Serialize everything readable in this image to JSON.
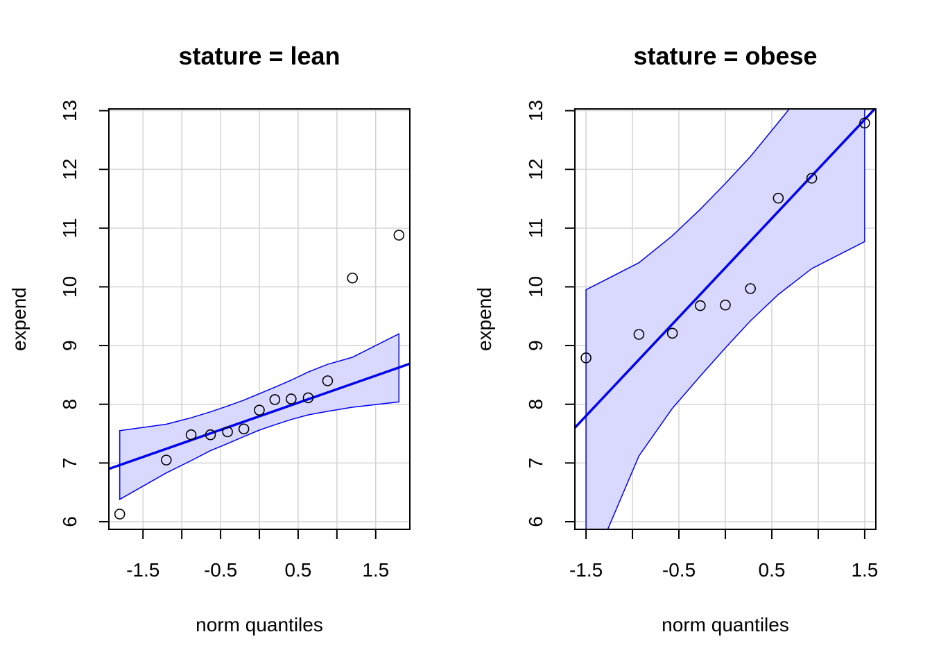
{
  "colors": {
    "line": "#0000ee",
    "band_fill": "#d9d9ff",
    "band_stroke": "#0000ee",
    "grid": "#d3d3d3",
    "points": "#000000"
  },
  "chart_data": [
    {
      "type": "scatter",
      "title": "stature = lean",
      "xlabel": "norm quantiles",
      "ylabel": "expend",
      "xlim": [
        -1.94,
        1.94
      ],
      "ylim": [
        5.87,
        13.03
      ],
      "xticks": [
        "-1.5",
        "-0.5",
        "0.5",
        "1.5"
      ],
      "yticks": [
        "6",
        "7",
        "8",
        "9",
        "10",
        "11",
        "12",
        "13"
      ],
      "grid": true,
      "points": {
        "x": [
          -1.8,
          -1.2,
          -0.88,
          -0.63,
          -0.41,
          -0.2,
          0.0,
          0.2,
          0.41,
          0.63,
          0.88,
          1.2,
          1.8
        ],
        "y": [
          6.13,
          7.05,
          7.48,
          7.48,
          7.53,
          7.58,
          7.9,
          8.08,
          8.09,
          8.11,
          8.4,
          10.15,
          10.88
        ]
      },
      "fit_line": {
        "x": [
          -1.94,
          1.94
        ],
        "y": [
          6.9,
          8.69
        ]
      },
      "band": {
        "x": [
          -1.8,
          -1.2,
          -0.88,
          -0.63,
          -0.41,
          -0.2,
          0.0,
          0.2,
          0.41,
          0.63,
          0.88,
          1.2,
          1.8
        ],
        "upper": [
          7.55,
          7.66,
          7.77,
          7.87,
          7.97,
          8.07,
          8.18,
          8.29,
          8.41,
          8.55,
          8.68,
          8.8,
          9.2
        ],
        "lower": [
          6.38,
          6.83,
          7.04,
          7.21,
          7.33,
          7.45,
          7.56,
          7.65,
          7.74,
          7.82,
          7.88,
          7.95,
          8.04
        ]
      }
    },
    {
      "type": "scatter",
      "title": "stature = obese",
      "xlabel": "norm quantiles",
      "ylabel": "expend",
      "xlim": [
        -1.62,
        1.62
      ],
      "ylim": [
        5.87,
        13.03
      ],
      "xticks": [
        "-1.5",
        "-0.5",
        "0.5",
        "1.5"
      ],
      "yticks": [
        "6",
        "7",
        "8",
        "9",
        "10",
        "11",
        "12",
        "13"
      ],
      "grid": true,
      "points": {
        "x": [
          -1.5,
          -0.93,
          -0.57,
          -0.27,
          0.0,
          0.27,
          0.57,
          0.93,
          1.5
        ],
        "y": [
          8.79,
          9.19,
          9.21,
          9.68,
          9.69,
          9.97,
          11.51,
          11.85,
          12.79
        ]
      },
      "fit_line": {
        "x": [
          -1.62,
          1.62
        ],
        "y": [
          7.6,
          13.05
        ]
      },
      "band": {
        "x": [
          -1.5,
          -0.93,
          -0.57,
          -0.27,
          0.0,
          0.27,
          0.57,
          0.93,
          1.5
        ],
        "upper": [
          9.95,
          10.41,
          10.87,
          11.32,
          11.76,
          12.22,
          12.8,
          13.5,
          14.6
        ],
        "lower": [
          5.0,
          7.12,
          7.93,
          8.48,
          8.96,
          9.42,
          9.87,
          10.31,
          10.77
        ]
      }
    }
  ]
}
